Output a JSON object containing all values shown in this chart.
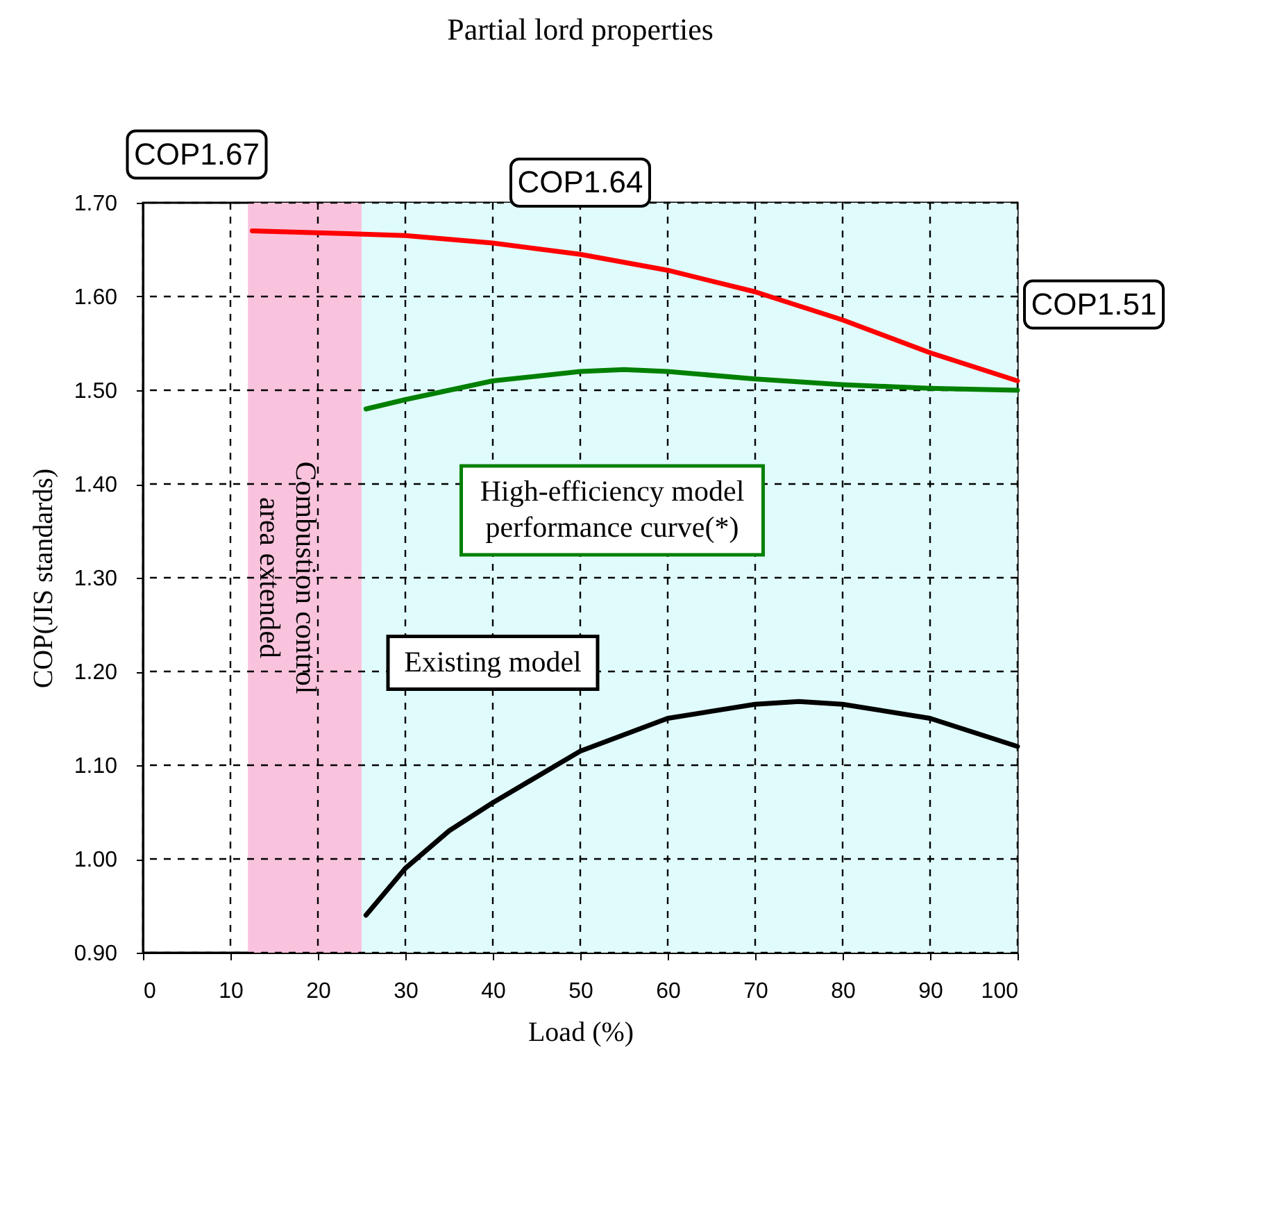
{
  "chart_data": {
    "type": "line",
    "title": "Partial lord properties",
    "xlabel": "Load (%)",
    "ylabel": "COP(JIS standards)",
    "xlim": [
      0,
      100
    ],
    "xticks": [
      0,
      10,
      20,
      30,
      40,
      50,
      60,
      70,
      80,
      90,
      100
    ],
    "ylim": [
      0.9,
      1.7
    ],
    "yticks": [
      {
        "value": 0.9,
        "label": "0.90"
      },
      {
        "value": 1.0,
        "label": "1.00"
      },
      {
        "value": 1.1,
        "label": "1.10"
      },
      {
        "value": 1.2,
        "label": "1.20"
      },
      {
        "value": 1.3,
        "label": "1.30"
      },
      {
        "value": 1.4,
        "label": "1.40"
      },
      {
        "value": 1.5,
        "label": "1.50"
      },
      {
        "value": 1.6,
        "label": "1.60"
      },
      {
        "value": 1.7,
        "label": "1.70"
      }
    ],
    "grid": true,
    "legend": false,
    "line_style": "solid",
    "marker": "none",
    "series": [
      {
        "color": "#ff0000",
        "x": [
          12.5,
          20,
          30,
          40,
          50,
          60,
          70,
          80,
          90,
          100
        ],
        "values": [
          1.67,
          1.668,
          1.665,
          1.657,
          1.645,
          1.628,
          1.605,
          1.575,
          1.54,
          1.51
        ]
      },
      {
        "name": "High-efficiency model performance curve(*)",
        "color": "#008000",
        "x": [
          25.5,
          30,
          40,
          50,
          55,
          60,
          70,
          80,
          90,
          100
        ],
        "values": [
          1.48,
          1.49,
          1.51,
          1.52,
          1.522,
          1.52,
          1.512,
          1.506,
          1.502,
          1.5
        ]
      },
      {
        "name": "Existing model",
        "color": "#000000",
        "x": [
          25.5,
          30,
          35,
          40,
          50,
          60,
          70,
          75,
          80,
          90,
          100
        ],
        "values": [
          0.94,
          0.99,
          1.03,
          1.06,
          1.115,
          1.15,
          1.165,
          1.168,
          1.165,
          1.15,
          1.12
        ]
      }
    ],
    "bands": [
      {
        "axis": "x",
        "from": 12,
        "to": 25,
        "label": "Combustion control area extended",
        "color": "#f9c3dd"
      },
      {
        "axis": "x",
        "from": 25,
        "to": 100,
        "color": "#e0fbfb"
      }
    ],
    "annotations": [
      {
        "text": "COP1.67",
        "x": 12.5,
        "y": 1.67
      },
      {
        "text": "COP1.64",
        "x": 50,
        "y": 1.64
      },
      {
        "text": "COP1.51",
        "x": 100,
        "y": 1.51
      }
    ]
  }
}
